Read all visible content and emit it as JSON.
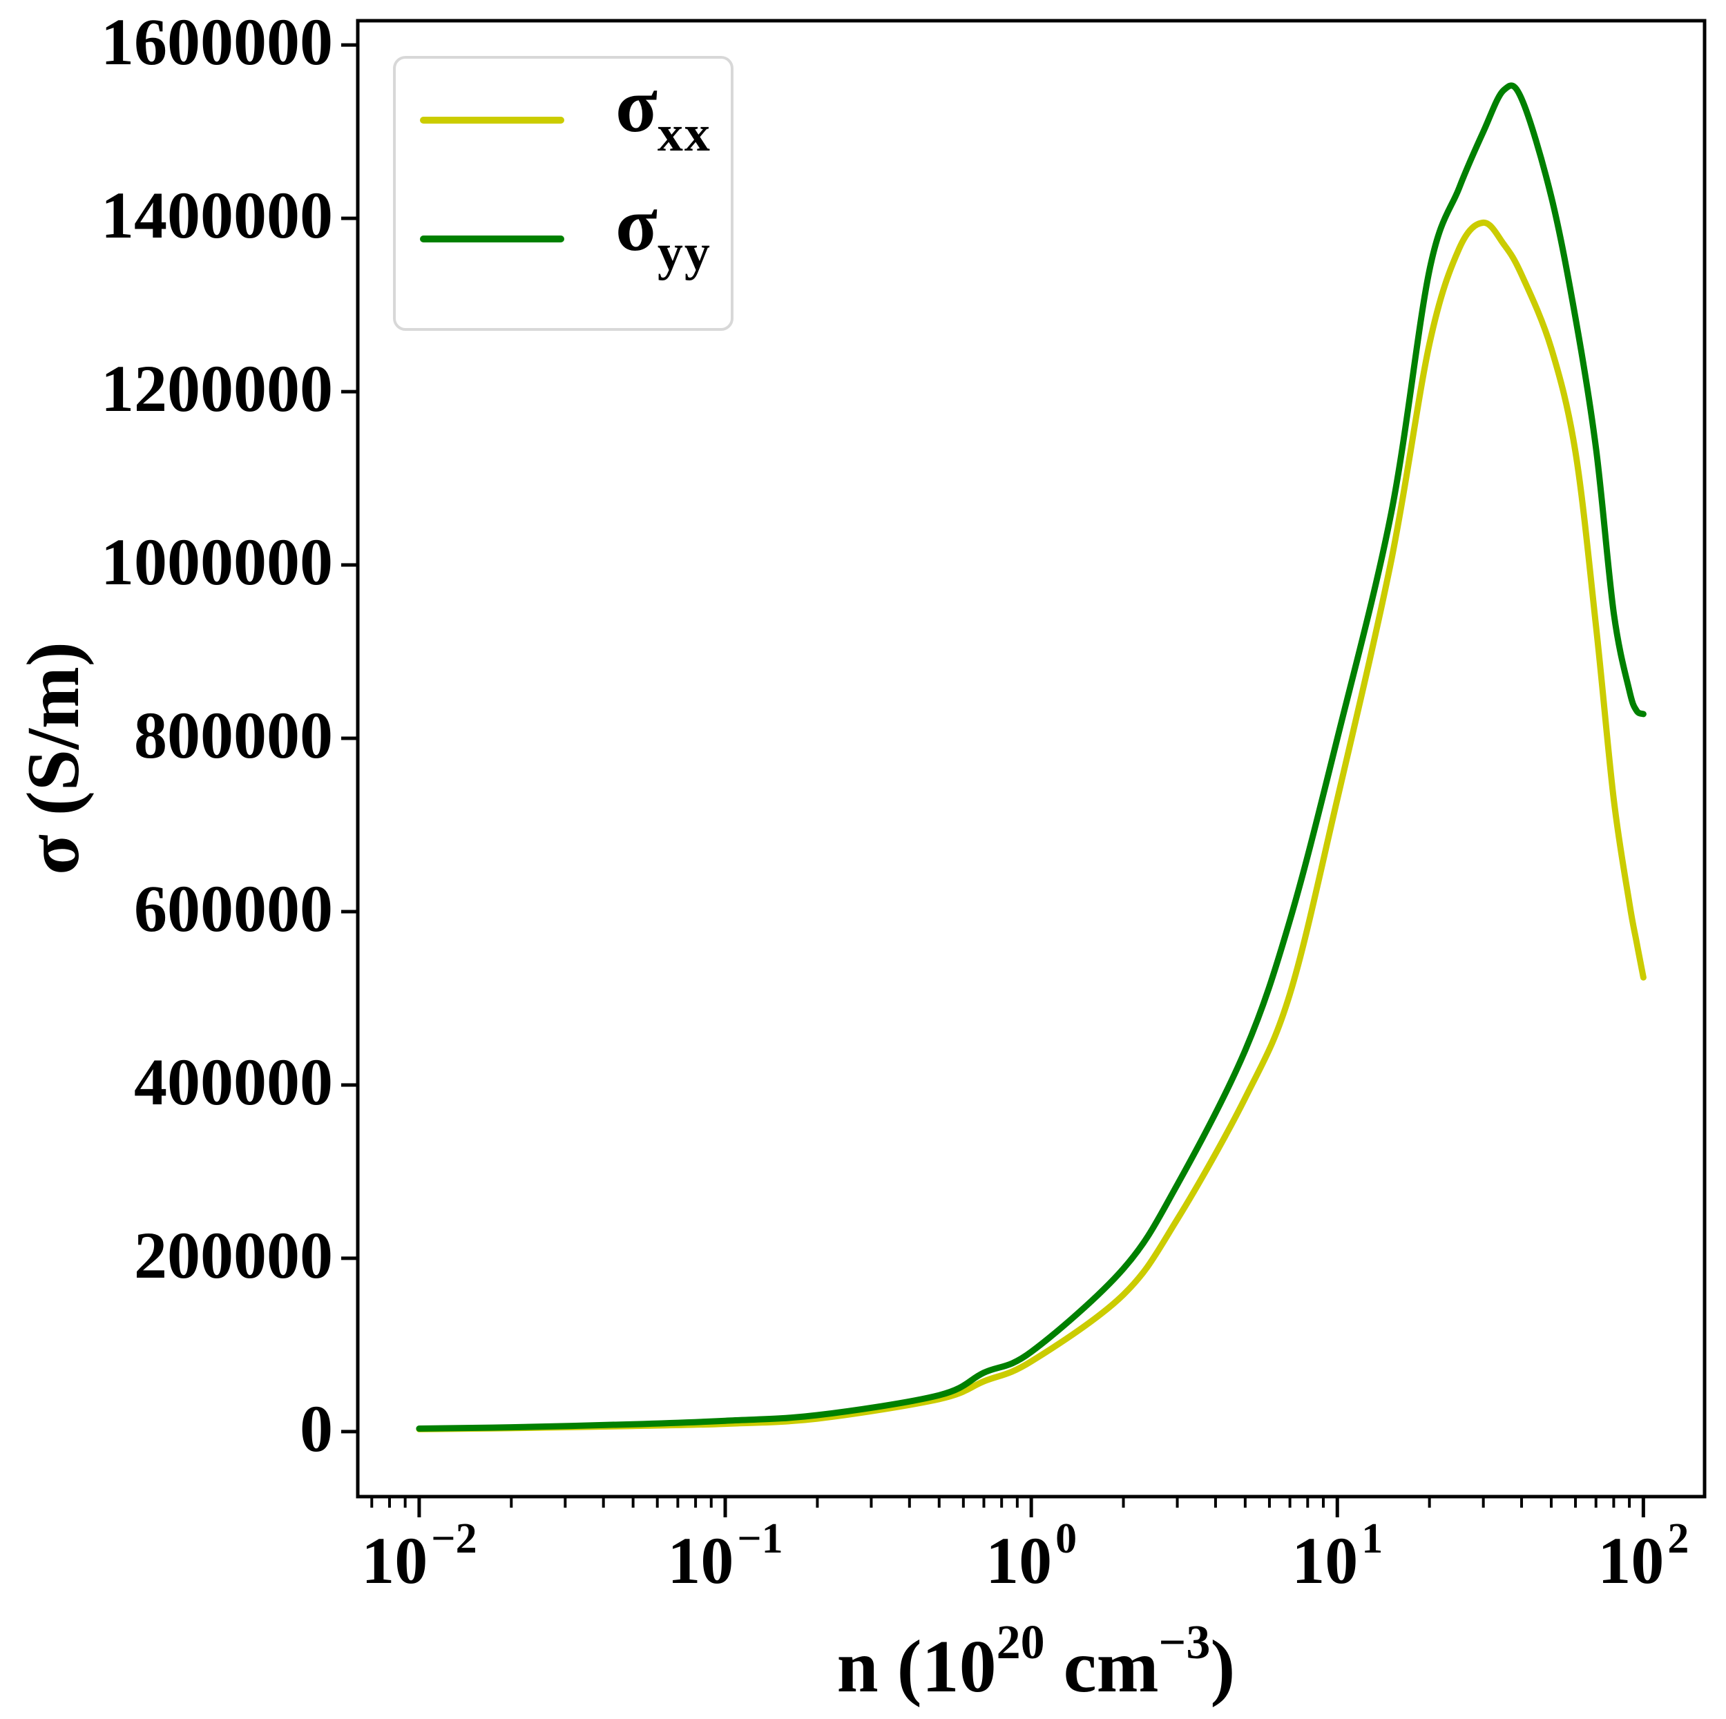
{
  "figure": {
    "background": "#ffffff"
  },
  "axes": {
    "y": {
      "label": "σ (S/m)",
      "ticks": [
        {
          "label": "0",
          "value": 0
        },
        {
          "label": "200000",
          "value": 200000
        },
        {
          "label": "400000",
          "value": 400000
        },
        {
          "label": "600000",
          "value": 600000
        },
        {
          "label": "800000",
          "value": 800000
        },
        {
          "label": "1000000",
          "value": 1000000
        },
        {
          "label": "1200000",
          "value": 1200000
        },
        {
          "label": "1400000",
          "value": 1400000
        },
        {
          "label": "1600000",
          "value": 1600000
        }
      ]
    },
    "x": {
      "label_tokens": [
        {
          "text": "n (10",
          "sup": false
        },
        {
          "text": "20",
          "sup": true
        },
        {
          "text": " cm",
          "sup": false
        },
        {
          "text": "−3",
          "sup": true
        },
        {
          "text": ")",
          "sup": false
        }
      ],
      "ticks": [
        {
          "base": "10",
          "exp": "−2",
          "value": 0.01
        },
        {
          "base": "10",
          "exp": "−1",
          "value": 0.1
        },
        {
          "base": "10",
          "exp": "0",
          "value": 1
        },
        {
          "base": "10",
          "exp": "1",
          "value": 10
        },
        {
          "base": "10",
          "exp": "2",
          "value": 100
        }
      ]
    }
  },
  "legend": {
    "position": "upper left",
    "entries": [
      {
        "main": "σ",
        "sub": "xx",
        "color": "#cbcc00"
      },
      {
        "main": "σ",
        "sub": "yy",
        "color": "#008000"
      }
    ]
  },
  "chart_data": {
    "type": "line",
    "title": "",
    "xlabel": "n (10^20 cm^-3)",
    "ylabel": "σ (S/m)",
    "x_scale": "log",
    "xlim": [
      0.0063,
      158.5
    ],
    "ylim": [
      -75000,
      1628000
    ],
    "grid": false,
    "legend_position": "upper left",
    "x": [
      0.01,
      0.02,
      0.05,
      0.1,
      0.2,
      0.5,
      0.7,
      1,
      2,
      3,
      5,
      7,
      10,
      15,
      20,
      25,
      30,
      35,
      40,
      50,
      60,
      70,
      80,
      90,
      95,
      100
    ],
    "series": [
      {
        "name": "sigma_xx",
        "color": "#cbcc00",
        "values": [
          2800,
          4000,
          6500,
          9000,
          15000,
          37500,
          58000,
          81000,
          158000,
          245000,
          385000,
          505000,
          730000,
          1005000,
          1255000,
          1365000,
          1395000,
          1370000,
          1335000,
          1250000,
          1130000,
          930000,
          730000,
          610000,
          565000,
          524000
        ]
      },
      {
        "name": "sigma_yy",
        "color": "#008000",
        "values": [
          3500,
          5000,
          8500,
          12500,
          19000,
          42000,
          68000,
          92000,
          188000,
          285000,
          440000,
          590000,
          800000,
          1060000,
          1340000,
          1435000,
          1500000,
          1548000,
          1538000,
          1425000,
          1285000,
          1135000,
          945000,
          855000,
          832000,
          828000
        ]
      }
    ],
    "y_peaks": [
      {
        "series": "sigma_xx",
        "n": 30,
        "sigma": 1395000
      },
      {
        "series": "sigma_yy",
        "n": 35,
        "sigma": 1548000
      }
    ],
    "minor_subs": [
      2,
      3,
      4,
      5,
      6,
      7,
      8,
      9
    ]
  }
}
